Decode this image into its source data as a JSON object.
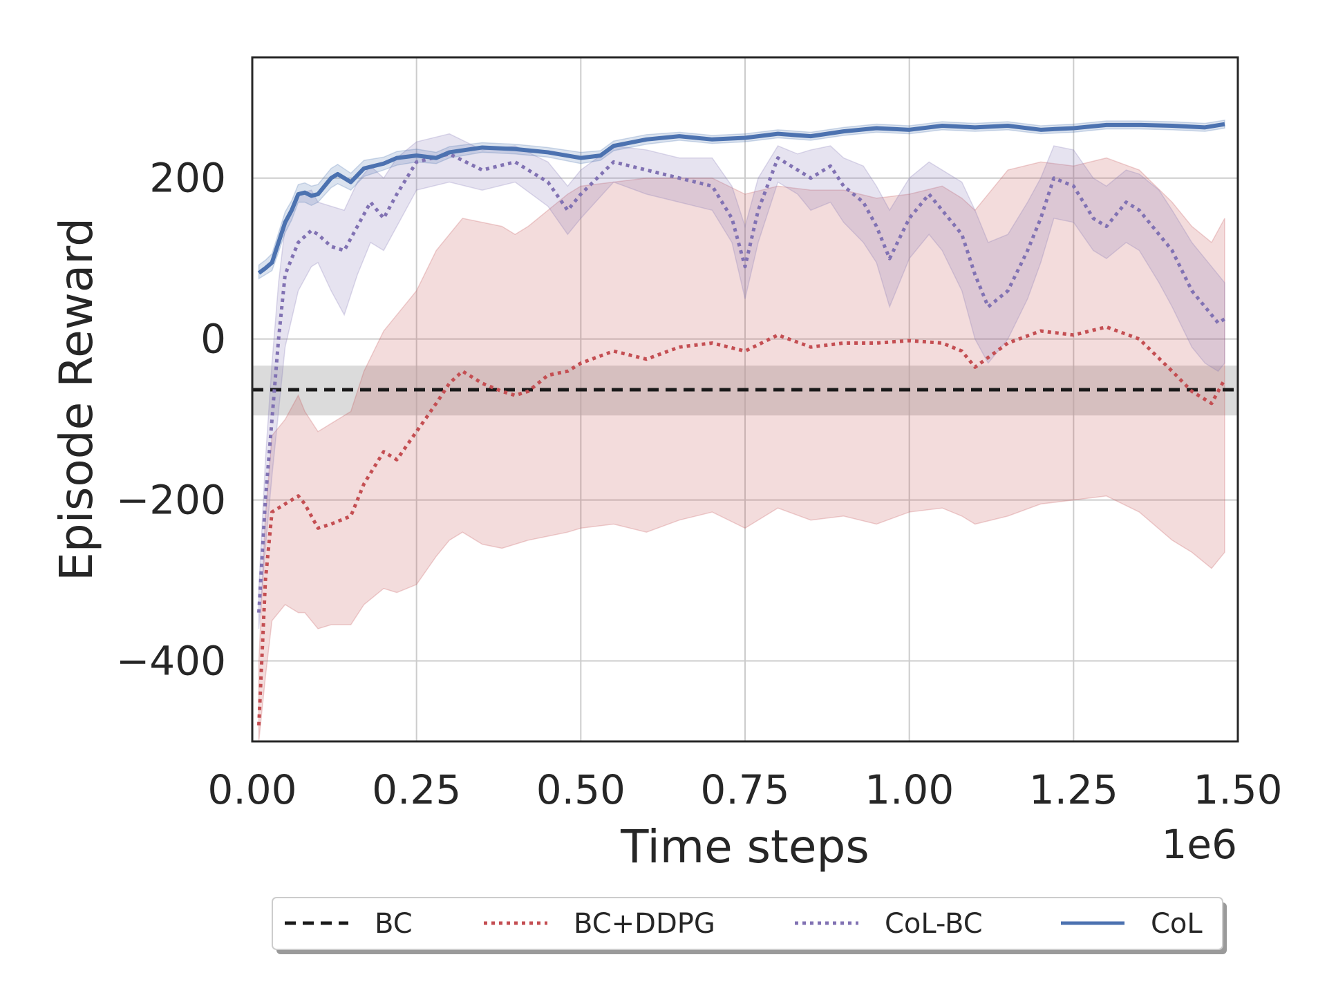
{
  "chart_data": {
    "type": "line",
    "title": "",
    "xlabel": "Time steps",
    "ylabel": "Episode Reward",
    "x_scale_label": "1e6",
    "xlim": [
      0,
      1.5
    ],
    "ylim": [
      -500,
      350
    ],
    "x_ticks": [
      0.0,
      0.25,
      0.5,
      0.75,
      1.0,
      1.25,
      1.5
    ],
    "x_tick_labels": [
      "0.00",
      "0.25",
      "0.50",
      "0.75",
      "1.00",
      "1.25",
      "1.50"
    ],
    "y_ticks": [
      -400,
      -200,
      0,
      200
    ],
    "y_tick_labels": [
      "−400",
      "−200",
      "0",
      "200"
    ],
    "grid": true,
    "legend_position": "below plot, one row",
    "series": [
      {
        "name": "BC",
        "color": "#1a1a1a",
        "style": "dashed",
        "x": [
          0.0,
          1.5
        ],
        "y": [
          -63,
          -63
        ],
        "lower": [
          -95,
          -95
        ],
        "upper": [
          -33,
          -33
        ],
        "band_color": "#bdbdbd"
      },
      {
        "name": "BC+DDPG",
        "color": "#c44e52",
        "style": "dotted",
        "x": [
          0.01,
          0.02,
          0.03,
          0.05,
          0.07,
          0.08,
          0.1,
          0.12,
          0.15,
          0.17,
          0.2,
          0.22,
          0.25,
          0.28,
          0.3,
          0.32,
          0.35,
          0.38,
          0.4,
          0.42,
          0.45,
          0.48,
          0.5,
          0.55,
          0.6,
          0.65,
          0.7,
          0.75,
          0.8,
          0.85,
          0.9,
          0.95,
          1.0,
          1.05,
          1.08,
          1.1,
          1.15,
          1.2,
          1.25,
          1.3,
          1.35,
          1.4,
          1.43,
          1.46,
          1.48
        ],
        "y": [
          -480,
          -300,
          -215,
          -205,
          -195,
          -205,
          -235,
          -230,
          -220,
          -180,
          -140,
          -150,
          -115,
          -80,
          -55,
          -40,
          -55,
          -65,
          -70,
          -65,
          -45,
          -40,
          -30,
          -15,
          -25,
          -10,
          -5,
          -15,
          5,
          -10,
          -5,
          -5,
          -2,
          -5,
          -15,
          -35,
          -5,
          10,
          5,
          15,
          0,
          -40,
          -65,
          -80,
          -50
        ],
        "lower": [
          -500,
          -420,
          -350,
          -330,
          -340,
          -340,
          -360,
          -355,
          -355,
          -330,
          -310,
          -315,
          -305,
          -270,
          -250,
          -240,
          -255,
          -260,
          -255,
          -250,
          -245,
          -240,
          -235,
          -230,
          -240,
          -225,
          -215,
          -235,
          -210,
          -225,
          -220,
          -230,
          -215,
          -210,
          -220,
          -230,
          -220,
          -205,
          -200,
          -195,
          -215,
          -250,
          -265,
          -285,
          -265
        ],
        "upper": [
          -400,
          -220,
          -120,
          -100,
          -70,
          -90,
          -115,
          -105,
          -90,
          -40,
          10,
          30,
          60,
          110,
          130,
          150,
          145,
          140,
          130,
          140,
          160,
          180,
          190,
          195,
          200,
          200,
          200,
          180,
          190,
          185,
          185,
          175,
          180,
          190,
          175,
          160,
          210,
          220,
          215,
          225,
          210,
          170,
          140,
          120,
          150
        ]
      },
      {
        "name": "CoL-BC",
        "color": "#8172b3",
        "style": "dotted",
        "x": [
          0.01,
          0.02,
          0.03,
          0.04,
          0.05,
          0.07,
          0.09,
          0.1,
          0.12,
          0.14,
          0.16,
          0.18,
          0.2,
          0.22,
          0.25,
          0.3,
          0.35,
          0.4,
          0.45,
          0.48,
          0.5,
          0.55,
          0.6,
          0.65,
          0.7,
          0.73,
          0.75,
          0.77,
          0.8,
          0.83,
          0.85,
          0.88,
          0.9,
          0.93,
          0.95,
          0.97,
          1.0,
          1.03,
          1.05,
          1.08,
          1.1,
          1.12,
          1.15,
          1.18,
          1.2,
          1.22,
          1.25,
          1.28,
          1.3,
          1.33,
          1.35,
          1.38,
          1.4,
          1.43,
          1.45,
          1.47,
          1.48
        ],
        "y": [
          -340,
          -200,
          -100,
          0,
          80,
          120,
          135,
          130,
          115,
          110,
          140,
          170,
          150,
          180,
          220,
          230,
          210,
          220,
          195,
          160,
          180,
          220,
          210,
          200,
          190,
          150,
          90,
          160,
          225,
          210,
          200,
          215,
          190,
          170,
          140,
          100,
          150,
          180,
          160,
          130,
          80,
          40,
          60,
          110,
          150,
          200,
          190,
          150,
          140,
          170,
          160,
          130,
          110,
          60,
          40,
          20,
          25
        ],
        "lower": [
          -360,
          -260,
          -170,
          -90,
          -10,
          60,
          90,
          95,
          60,
          30,
          80,
          120,
          110,
          140,
          185,
          195,
          185,
          195,
          165,
          130,
          150,
          195,
          180,
          170,
          160,
          120,
          50,
          120,
          195,
          180,
          160,
          170,
          145,
          120,
          95,
          40,
          100,
          130,
          110,
          60,
          0,
          -30,
          0,
          50,
          95,
          150,
          145,
          110,
          100,
          120,
          110,
          70,
          40,
          -10,
          -30,
          -40,
          -30
        ],
        "upper": [
          -310,
          -150,
          -30,
          70,
          140,
          180,
          185,
          170,
          165,
          160,
          195,
          215,
          200,
          225,
          245,
          255,
          235,
          240,
          220,
          190,
          210,
          240,
          235,
          225,
          225,
          190,
          140,
          200,
          240,
          230,
          235,
          240,
          225,
          215,
          190,
          160,
          200,
          220,
          210,
          195,
          160,
          120,
          130,
          170,
          200,
          240,
          235,
          200,
          190,
          210,
          205,
          185,
          160,
          120,
          100,
          80,
          70
        ]
      },
      {
        "name": "CoL",
        "color": "#4c72b0",
        "style": "solid",
        "x": [
          0.01,
          0.02,
          0.03,
          0.04,
          0.05,
          0.06,
          0.07,
          0.08,
          0.09,
          0.1,
          0.12,
          0.13,
          0.15,
          0.17,
          0.2,
          0.22,
          0.25,
          0.28,
          0.3,
          0.35,
          0.4,
          0.45,
          0.5,
          0.53,
          0.55,
          0.6,
          0.65,
          0.7,
          0.75,
          0.8,
          0.85,
          0.9,
          0.95,
          1.0,
          1.05,
          1.1,
          1.15,
          1.2,
          1.25,
          1.3,
          1.35,
          1.4,
          1.45,
          1.48
        ],
        "y": [
          82,
          88,
          95,
          120,
          145,
          160,
          180,
          182,
          178,
          180,
          200,
          205,
          195,
          212,
          218,
          225,
          228,
          225,
          232,
          238,
          236,
          232,
          225,
          228,
          240,
          248,
          252,
          248,
          250,
          255,
          252,
          258,
          262,
          260,
          265,
          263,
          265,
          260,
          262,
          266,
          266,
          265,
          263,
          267
        ],
        "lower": [
          75,
          80,
          85,
          108,
          132,
          148,
          170,
          170,
          166,
          170,
          188,
          193,
          185,
          202,
          210,
          216,
          220,
          218,
          225,
          232,
          230,
          226,
          218,
          222,
          234,
          242,
          247,
          243,
          245,
          250,
          247,
          253,
          257,
          255,
          260,
          258,
          260,
          255,
          257,
          261,
          261,
          260,
          258,
          262
        ],
        "upper": [
          92,
          98,
          106,
          132,
          158,
          172,
          192,
          194,
          190,
          192,
          212,
          217,
          206,
          222,
          226,
          233,
          236,
          232,
          239,
          244,
          242,
          238,
          232,
          234,
          246,
          254,
          257,
          253,
          255,
          260,
          257,
          263,
          267,
          265,
          270,
          268,
          270,
          265,
          267,
          271,
          271,
          270,
          268,
          272
        ]
      }
    ]
  }
}
